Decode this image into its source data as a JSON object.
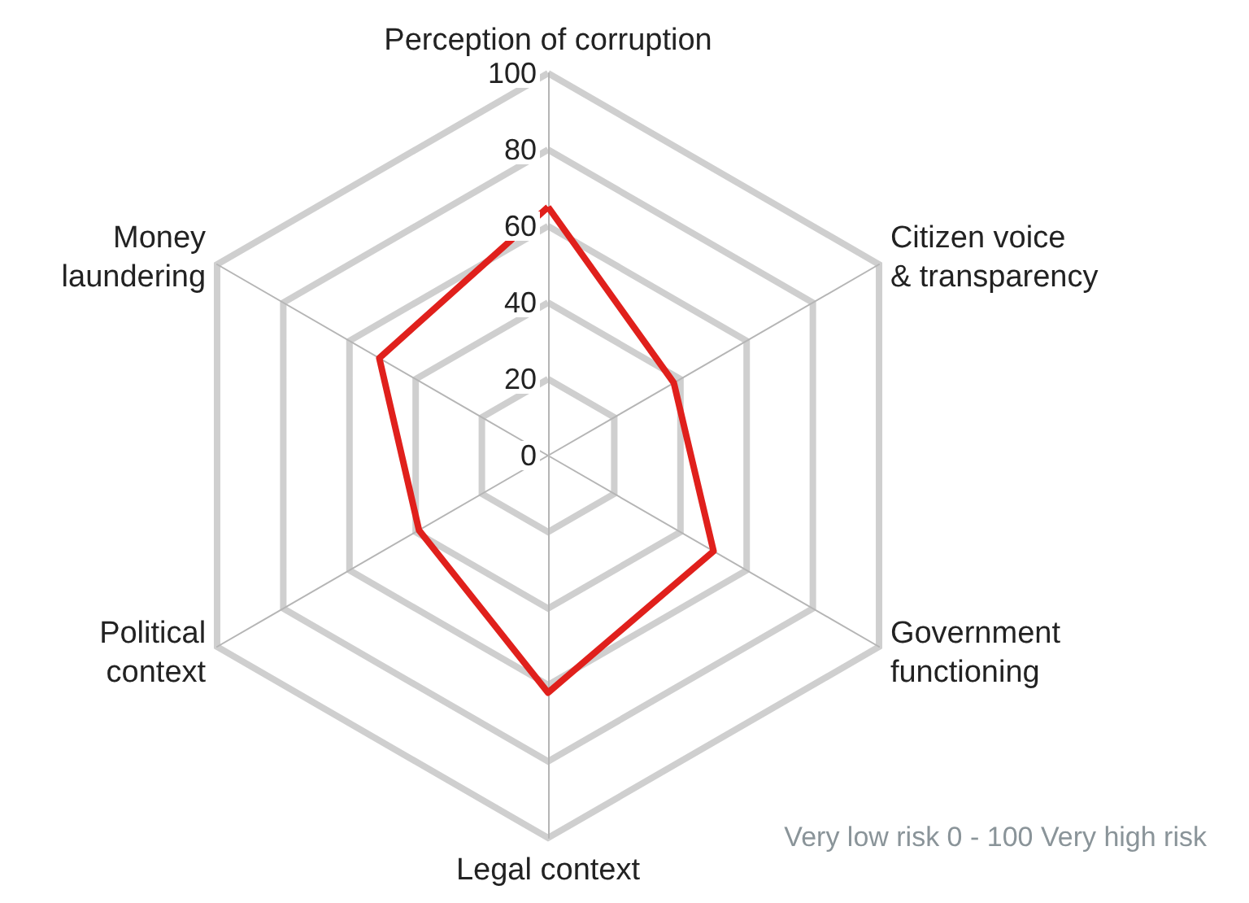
{
  "chart_data": {
    "type": "radar",
    "categories": [
      "Perception of corruption",
      "Citizen voice\n& transparency",
      "Government\nfunctioning",
      "Legal context",
      "Political\ncontext",
      "Money\nlaundering"
    ],
    "series": [
      {
        "color": "#e0201c",
        "values": [
          65,
          38,
          50,
          62,
          39,
          51
        ]
      }
    ],
    "ylim": [
      0,
      100
    ],
    "yticks": [
      0,
      20,
      40,
      60,
      80,
      100
    ],
    "marker": "none",
    "line_style": "solid",
    "annotations": [
      "Very low risk 0 - 100 Very high risk"
    ]
  }
}
